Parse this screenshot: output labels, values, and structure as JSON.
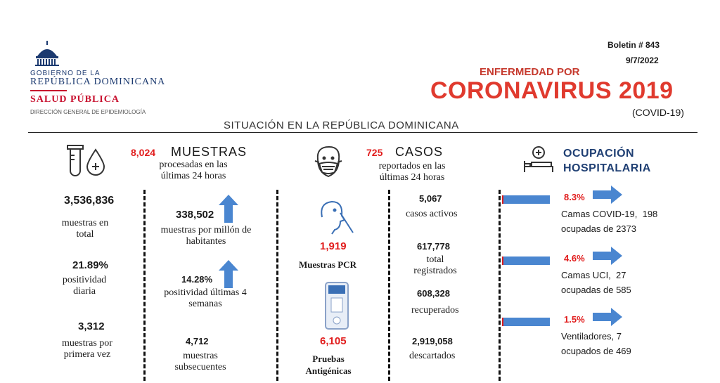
{
  "logo": {
    "line1": "GOBIERNO DE LA",
    "line2": "REPÚBLICA DOMINICANA",
    "line3": "SALUD PÚBLICA",
    "line4": "DIRECCIÓN GENERAL DE EPIDEMIOLOGÍA"
  },
  "boletin": "Boletin # 843",
  "date": "9/7/2022",
  "title": {
    "small": "ENFERMEDAD POR",
    "big": "CORONAVIRUS 2019",
    "sub": "(COVID-19)"
  },
  "subtitle": "SITUACIÓN EN LA REPÚBLICA DOMINICANA",
  "colors": {
    "red": "#e11d1d",
    "blue": "#4a86d0"
  },
  "muestras": {
    "count": "8,024",
    "title": "MUESTRAS",
    "desc": "procesadas en las últimas 24 horas",
    "total_value": "3,536,836",
    "total_label": "muestras en total",
    "positividad_value": "21.89%",
    "positividad_label": "positividad diaria",
    "primera_value": "3,312",
    "primera_label": "muestras por primera vez",
    "millon_value": "338,502",
    "millon_label": "muestras por millón de habitantes",
    "pos4_value": "14.28%",
    "pos4_label": "positividad últimas 4 semanas",
    "subsec_value": "4,712",
    "subsec_label": "muestras subsecuentes"
  },
  "casos": {
    "count": "725",
    "title": "CASOS",
    "desc": "reportados en las últimas 24 horas",
    "pcr_value": "1,919",
    "pcr_label": "Muestras PCR",
    "antig_value": "6,105",
    "antig_label": "Pruebas Antigénicas",
    "activos_value": "5,067",
    "activos_label": "casos activos",
    "total_value": "617,778",
    "total_label": "total registrados",
    "recuperados_value": "608,328",
    "recuperados_label": "recuperados",
    "descartados_value": "2,919,058",
    "descartados_label": "descartados"
  },
  "ocupacion": {
    "title": "OCUPACIÓN HOSPITALARIA",
    "items": [
      {
        "pct": "8.3%",
        "fraction": 0.083,
        "line1": "Camas COVID-19,  198",
        "line2": "ocupadas de 2373"
      },
      {
        "pct": "4.6%",
        "fraction": 0.046,
        "line1": "Camas UCI,  27",
        "line2": "ocupadas de 585"
      },
      {
        "pct": "1.5%",
        "fraction": 0.015,
        "line1": "Ventiladores, 7",
        "line2": "ocupados de 469"
      }
    ]
  },
  "icons": [
    "dome-icon",
    "test-tube-drop-icon",
    "masked-face-icon",
    "nasal-swab-icon",
    "antigen-test-icon",
    "hospital-bed-icon",
    "arrow-up-icon",
    "arrow-right-icon"
  ]
}
